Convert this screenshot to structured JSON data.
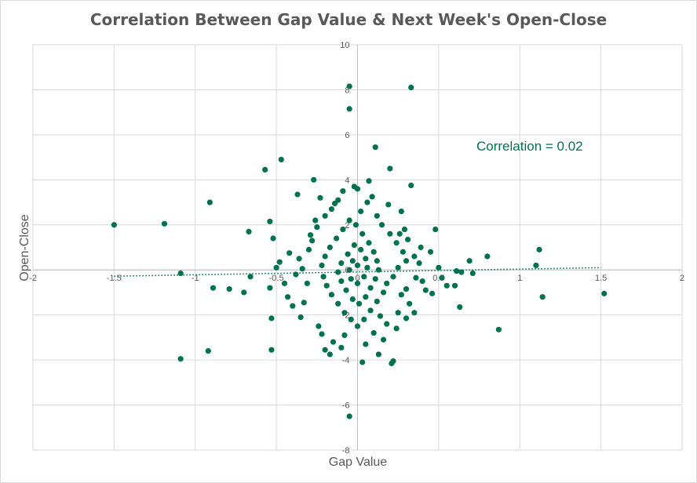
{
  "chart_data": {
    "type": "scatter",
    "title": "Correlation Between Gap Value & Next Week's Open-Close",
    "xlabel": "Gap Value",
    "ylabel": "Open-Close",
    "xlim": [
      -2,
      2
    ],
    "ylim": [
      -8,
      10
    ],
    "x_ticks": [
      "-2",
      "-1.5",
      "-1",
      "-0.5",
      "0",
      "0.5",
      "1",
      "1.5",
      "2"
    ],
    "y_ticks": [
      "-8",
      "-6",
      "-4",
      "-2",
      "0",
      "2",
      "4",
      "6",
      "8",
      "10"
    ],
    "grid": true,
    "legend": "none",
    "point_color": "#00734A",
    "annotation": "Correlation = 0.02",
    "trendline": {
      "style": "dotted",
      "start": [
        -1.5,
        -0.28
      ],
      "end": [
        1.5,
        0.1
      ]
    },
    "series": [
      {
        "points": [
          [
            -0.05,
            8.15
          ],
          [
            0.33,
            8.1
          ],
          [
            -0.05,
            7.15
          ],
          [
            0.11,
            5.45
          ],
          [
            -0.47,
            4.9
          ],
          [
            -0.57,
            4.45
          ],
          [
            0.2,
            4.5
          ],
          [
            -0.27,
            4.0
          ],
          [
            0.07,
            3.95
          ],
          [
            0.33,
            3.75
          ],
          [
            -0.02,
            3.7
          ],
          [
            -0.37,
            3.35
          ],
          [
            -0.23,
            3.2
          ],
          [
            -0.91,
            3.0
          ],
          [
            0.06,
            3.0
          ],
          [
            -1.5,
            2.0
          ],
          [
            -1.19,
            2.05
          ],
          [
            -0.54,
            2.15
          ],
          [
            0.29,
            1.8
          ],
          [
            0.48,
            1.8
          ],
          [
            -0.67,
            1.7
          ],
          [
            -0.52,
            1.4
          ],
          [
            1.12,
            0.9
          ],
          [
            0.8,
            0.6
          ],
          [
            0.69,
            0.4
          ],
          [
            1.1,
            0.2
          ],
          [
            -0.48,
            0.35
          ],
          [
            -0.5,
            0.1
          ],
          [
            -1.09,
            -0.15
          ],
          [
            -0.66,
            -0.3
          ],
          [
            -0.89,
            -0.8
          ],
          [
            -0.79,
            -0.85
          ],
          [
            -0.7,
            -1.0
          ],
          [
            -0.54,
            -0.8
          ],
          [
            0.55,
            -0.7
          ],
          [
            0.6,
            -0.7
          ],
          [
            0.61,
            -0.05
          ],
          [
            0.64,
            -0.1
          ],
          [
            0.71,
            -0.15
          ],
          [
            1.14,
            -1.2
          ],
          [
            1.52,
            -1.05
          ],
          [
            0.46,
            -1.05
          ],
          [
            0.63,
            -1.65
          ],
          [
            0.87,
            -2.65
          ],
          [
            -0.53,
            -2.15
          ],
          [
            -0.92,
            -3.6
          ],
          [
            -0.53,
            -3.55
          ],
          [
            -1.09,
            -3.95
          ],
          [
            0.21,
            -4.15
          ],
          [
            0.03,
            -4.1
          ],
          [
            0.22,
            -4.05
          ],
          [
            0.13,
            -3.75
          ],
          [
            -0.05,
            -6.5
          ],
          [
            -0.17,
            -3.75
          ],
          [
            -0.2,
            -3.55
          ],
          [
            0.45,
            0.8
          ],
          [
            0.35,
            0.6
          ],
          [
            0.38,
            0.3
          ],
          [
            0.5,
            0.1
          ],
          [
            0.52,
            -0.35
          ],
          [
            0.4,
            -0.5
          ],
          [
            0.3,
            -0.85
          ],
          [
            0.27,
            -1.1
          ],
          [
            0.32,
            -1.5
          ],
          [
            0.25,
            -1.9
          ],
          [
            0.3,
            -2.15
          ],
          [
            0.18,
            -2.4
          ],
          [
            0.1,
            -2.8
          ],
          [
            -0.08,
            -2.9
          ],
          [
            -0.22,
            -2.85
          ],
          [
            -0.35,
            -2.1
          ],
          [
            -0.4,
            -1.6
          ],
          [
            -0.43,
            -1.2
          ],
          [
            -0.45,
            -0.6
          ],
          [
            -0.38,
            -0.2
          ],
          [
            -0.36,
            0.5
          ],
          [
            -0.3,
            0.9
          ],
          [
            -0.28,
            1.3
          ],
          [
            -0.25,
            1.9
          ],
          [
            -0.2,
            2.4
          ],
          [
            -0.16,
            2.7
          ],
          [
            -0.12,
            3.1
          ],
          [
            0.02,
            2.6
          ],
          [
            0.12,
            2.4
          ],
          [
            0.15,
            2.0
          ],
          [
            0.2,
            1.6
          ],
          [
            0.24,
            1.2
          ],
          [
            0.28,
            0.8
          ],
          [
            0.3,
            0.4
          ],
          [
            0.25,
            0.1
          ],
          [
            0.22,
            -0.3
          ],
          [
            0.18,
            -0.6
          ],
          [
            0.16,
            -1.0
          ],
          [
            0.12,
            -1.4
          ],
          [
            0.08,
            -1.8
          ],
          [
            0.04,
            -2.2
          ],
          [
            0.0,
            -2.5
          ],
          [
            -0.04,
            -2.2
          ],
          [
            -0.08,
            -1.9
          ],
          [
            -0.12,
            -1.5
          ],
          [
            -0.16,
            -1.1
          ],
          [
            -0.19,
            -0.7
          ],
          [
            -0.21,
            -0.3
          ],
          [
            -0.22,
            0.2
          ],
          [
            -0.2,
            0.6
          ],
          [
            -0.17,
            1.0
          ],
          [
            -0.13,
            1.4
          ],
          [
            -0.09,
            1.8
          ],
          [
            -0.05,
            2.2
          ],
          [
            -0.01,
            2.0
          ],
          [
            0.03,
            1.6
          ],
          [
            0.07,
            1.2
          ],
          [
            0.1,
            0.8
          ],
          [
            0.12,
            0.4
          ],
          [
            0.13,
            0.0
          ],
          [
            0.11,
            -0.4
          ],
          [
            0.08,
            -0.8
          ],
          [
            0.05,
            -1.2
          ],
          [
            0.01,
            -1.5
          ],
          [
            -0.03,
            -1.3
          ],
          [
            -0.07,
            -0.9
          ],
          [
            -0.1,
            -0.5
          ],
          [
            -0.12,
            -0.1
          ],
          [
            -0.1,
            0.3
          ],
          [
            -0.06,
            0.7
          ],
          [
            -0.02,
            1.1
          ],
          [
            0.02,
            0.9
          ],
          [
            0.05,
            0.5
          ],
          [
            0.06,
            0.1
          ],
          [
            0.04,
            -0.3
          ],
          [
            0.0,
            -0.6
          ],
          [
            -0.04,
            -0.4
          ],
          [
            -0.05,
            0.0
          ],
          [
            -0.03,
            0.4
          ],
          [
            0.0,
            0.2
          ],
          [
            0.36,
            -0.35
          ],
          [
            0.31,
            1.35
          ],
          [
            0.26,
            1.6
          ],
          [
            0.19,
            2.9
          ],
          [
            -0.14,
            2.95
          ],
          [
            -0.26,
            2.2
          ],
          [
            -0.31,
            -0.6
          ],
          [
            -0.33,
            -1.45
          ],
          [
            -0.24,
            -2.5
          ],
          [
            -0.15,
            -3.2
          ],
          [
            0.05,
            -3.3
          ],
          [
            0.16,
            -3.1
          ],
          [
            0.24,
            -2.6
          ],
          [
            0.35,
            -1.9
          ],
          [
            0.42,
            -0.9
          ],
          [
            -0.42,
            0.75
          ],
          [
            -0.29,
            1.55
          ],
          [
            0.09,
            3.25
          ],
          [
            -0.09,
            3.5
          ],
          [
            0.14,
            -2.05
          ],
          [
            0.0,
            3.6
          ],
          [
            -0.1,
            -3.45
          ],
          [
            0.27,
            2.6
          ],
          [
            -0.34,
            0.05
          ],
          [
            0.39,
            1.0
          ]
        ]
      }
    ]
  }
}
